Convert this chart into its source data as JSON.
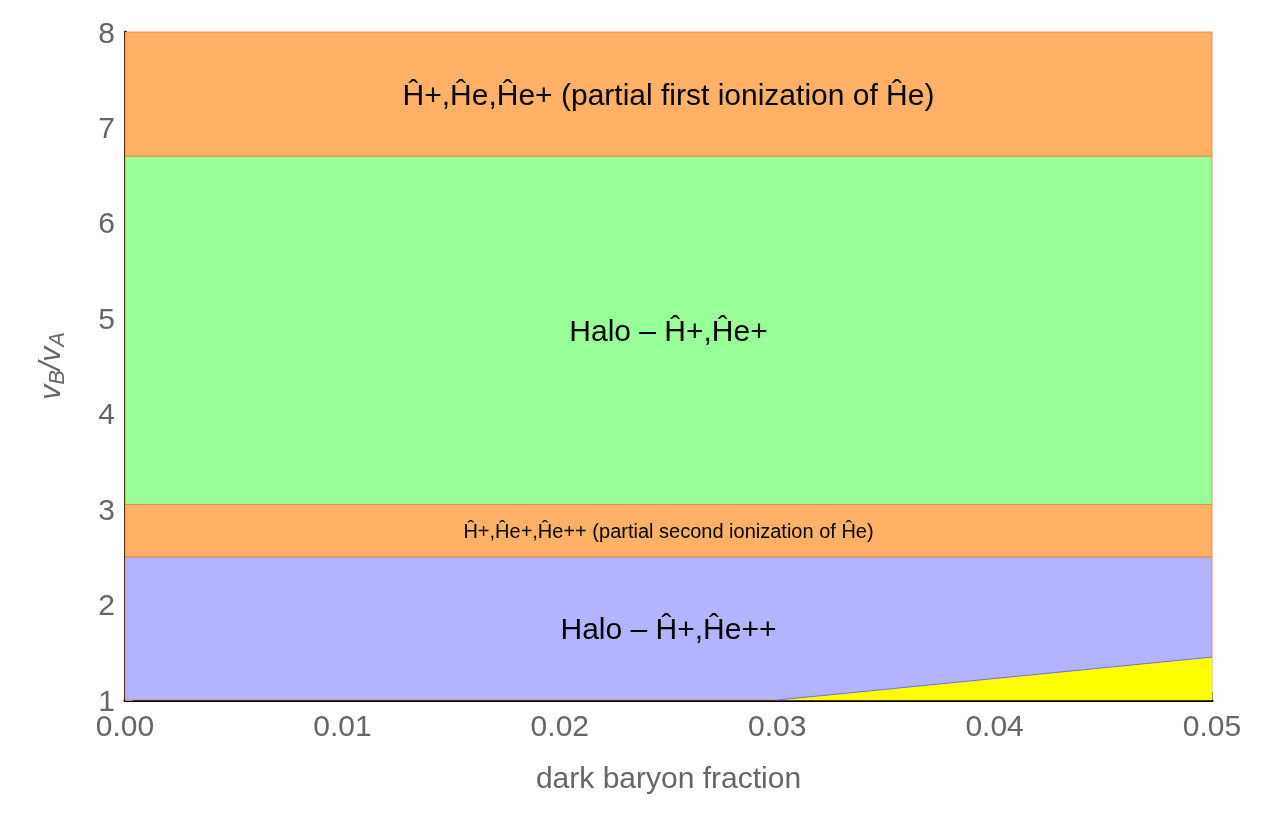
{
  "chart_data": {
    "type": "area",
    "xlabel": "dark baryon fraction",
    "ylabel": "v$_{B}$/v$_{A}$",
    "series": [
      {
        "color": "#ffff00",
        "x": [
          0.03,
          0.05
        ],
        "values": [
          1,
          1.45
        ]
      }
    ],
    "bands": [
      {
        "axis": "y",
        "from": 1,
        "to": 2.5,
        "label": "Halo – Ĥ+,Ĥe++",
        "color": "#b3b3ff"
      },
      {
        "axis": "y",
        "from": 2.5,
        "to": 3.05,
        "label": "Ĥ+,Ĥe+,Ĥe++ (partial second ionization of Ĥe)",
        "color": "#ffb266"
      },
      {
        "axis": "y",
        "from": 3.05,
        "to": 6.7,
        "label": "Halo – Ĥ+,Ĥe+",
        "color": "#99ff99"
      },
      {
        "axis": "y",
        "from": 6.7,
        "to": 8,
        "label": "Ĥ+,Ĥe,Ĥe+ (partial first ionization of Ĥe)",
        "color": "#ffb266"
      }
    ],
    "xlim": [
      0,
      0.05
    ],
    "xticks": [
      {
        "value": 0,
        "label": "0.00"
      },
      {
        "value": 0.01,
        "label": "0.01"
      },
      {
        "value": 0.02,
        "label": "0.02"
      },
      {
        "value": 0.03,
        "label": "0.03"
      },
      {
        "value": 0.04,
        "label": "0.04"
      },
      {
        "value": 0.05,
        "label": "0.05"
      }
    ],
    "ylim": [
      1,
      8
    ],
    "yticks": [
      1,
      2,
      3,
      4,
      5,
      6,
      7,
      8
    ],
    "grid": false
  }
}
